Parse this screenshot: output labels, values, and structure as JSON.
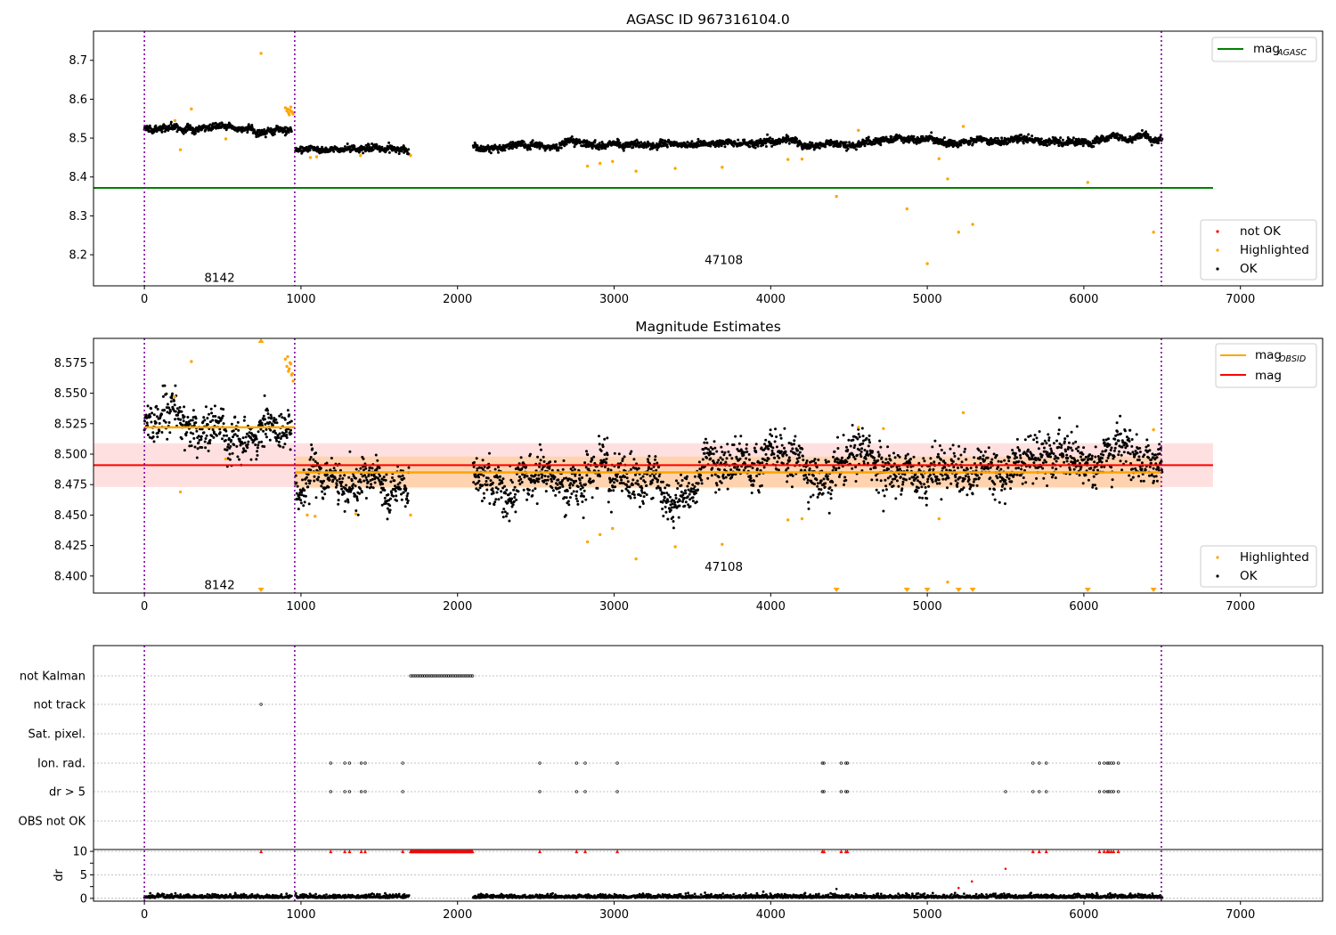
{
  "colors": {
    "ok": "#000000",
    "not_ok": "#ff0000",
    "highlighted": "#ffa500",
    "mag_agasc": "#008000",
    "mag_obsid": "#ffa500",
    "mag": "#ff0000",
    "vline": "#8000a0",
    "band": "#ff0000"
  },
  "chart_data": [
    {
      "type": "scatter",
      "title": "AGASC ID 967316104.0",
      "xlim": [
        -325,
        7525
      ],
      "ylim": [
        8.12,
        8.775
      ],
      "xticks": [
        0,
        1000,
        2000,
        3000,
        4000,
        5000,
        6000,
        7000
      ],
      "yticks": [
        8.2,
        8.3,
        8.4,
        8.5,
        8.6,
        8.7
      ],
      "vlines": [
        0,
        960,
        6495
      ],
      "hline": {
        "name": "mag_AGASC",
        "y": 8.372,
        "x_range": [
          -325,
          6825
        ]
      },
      "obsid_labels": [
        {
          "text": "8142",
          "x": 480,
          "y": 8.142
        },
        {
          "text": "47108",
          "x": 3700,
          "y": 8.188
        }
      ],
      "legend_top": [
        {
          "main": "mag",
          "sub": "AGASC",
          "color_key": "mag_agasc"
        }
      ],
      "legend_bottom": [
        {
          "label": "not OK",
          "color_key": "not_ok"
        },
        {
          "label": "Highlighted",
          "color_key": "highlighted"
        },
        {
          "label": "OK",
          "color_key": "ok"
        }
      ],
      "ok_segments": [
        {
          "x": [
            0,
            940
          ],
          "y": 8.524,
          "noise": 0.006,
          "slope": 0
        },
        {
          "x": [
            965,
            1690
          ],
          "y": 8.47,
          "noise": 0.006,
          "slope": 0
        },
        {
          "x": [
            2100,
            6500
          ],
          "y": 8.478,
          "noise": 0.006,
          "slope": 4.5e-06
        }
      ],
      "highlighted_points": [
        [
          745,
          8.718
        ],
        [
          300,
          8.575
        ],
        [
          195,
          8.545
        ],
        [
          230,
          8.47
        ],
        [
          520,
          8.498
        ],
        [
          1060,
          8.45
        ],
        [
          1100,
          8.452
        ],
        [
          1380,
          8.455
        ],
        [
          1700,
          8.455
        ],
        [
          2830,
          8.428
        ],
        [
          2910,
          8.435
        ],
        [
          2990,
          8.44
        ],
        [
          3140,
          8.415
        ],
        [
          3390,
          8.422
        ],
        [
          3690,
          8.425
        ],
        [
          4110,
          8.445
        ],
        [
          4200,
          8.446
        ],
        [
          4420,
          8.35
        ],
        [
          4560,
          8.52
        ],
        [
          4870,
          8.318
        ],
        [
          5000,
          8.177
        ],
        [
          5075,
          8.447
        ],
        [
          5130,
          8.395
        ],
        [
          5200,
          8.258
        ],
        [
          5290,
          8.278
        ],
        [
          6025,
          8.386
        ],
        [
          6445,
          8.258
        ],
        [
          5230,
          8.53
        ],
        [
          900,
          8.578
        ],
        [
          910,
          8.57
        ],
        [
          920,
          8.565
        ],
        [
          930,
          8.572
        ],
        [
          940,
          8.568
        ],
        [
          950,
          8.562
        ],
        [
          915,
          8.575
        ],
        [
          925,
          8.56
        ],
        [
          935,
          8.58
        ],
        [
          945,
          8.566
        ]
      ]
    },
    {
      "type": "scatter",
      "title": "Magnitude Estimates",
      "xlim": [
        -325,
        7525
      ],
      "ylim": [
        8.386,
        8.595
      ],
      "xticks": [
        0,
        1000,
        2000,
        3000,
        4000,
        5000,
        6000,
        7000
      ],
      "yticks": [
        8.4,
        8.425,
        8.45,
        8.475,
        8.5,
        8.525,
        8.55,
        8.575
      ],
      "vlines": [
        0,
        960,
        6495
      ],
      "mag": {
        "y": 8.491,
        "band": [
          8.473,
          8.509
        ],
        "x_range": [
          -325,
          6825
        ]
      },
      "mag_obsid": [
        {
          "x": [
            0,
            960
          ],
          "y": 8.522
        },
        {
          "x": [
            960,
            6495
          ],
          "y": 8.485,
          "band": [
            8.472,
            8.498
          ]
        }
      ],
      "obsid_labels": [
        {
          "text": "8142",
          "x": 480,
          "y": 8.393
        },
        {
          "text": "47108",
          "x": 3700,
          "y": 8.408
        }
      ],
      "legend_top": [
        {
          "main": "mag",
          "sub": "OBSID",
          "color_key": "mag_obsid"
        },
        {
          "main": "mag",
          "sub": "",
          "color_key": "mag"
        }
      ],
      "legend_bottom": [
        {
          "label": "Highlighted",
          "color_key": "highlighted"
        },
        {
          "label": "OK",
          "color_key": "ok"
        }
      ],
      "ok_segments": [
        {
          "x": [
            0,
            940
          ],
          "y": 8.521,
          "noise": 0.011,
          "slope": 0
        },
        {
          "x": [
            965,
            1690
          ],
          "y": 8.472,
          "noise": 0.011,
          "slope": 0
        },
        {
          "x": [
            2100,
            6500
          ],
          "y": 8.478,
          "noise": 0.012,
          "slope": 4.5e-06
        }
      ],
      "highlighted_points": [
        [
          300,
          8.576
        ],
        [
          195,
          8.547
        ],
        [
          230,
          8.469
        ],
        [
          520,
          8.496
        ],
        [
          1040,
          8.45
        ],
        [
          1090,
          8.449
        ],
        [
          1350,
          8.451
        ],
        [
          1700,
          8.45
        ],
        [
          2830,
          8.428
        ],
        [
          2910,
          8.434
        ],
        [
          2990,
          8.439
        ],
        [
          3140,
          8.414
        ],
        [
          3390,
          8.424
        ],
        [
          3690,
          8.426
        ],
        [
          4110,
          8.446
        ],
        [
          4200,
          8.447
        ],
        [
          4560,
          8.522
        ],
        [
          4720,
          8.521
        ],
        [
          5075,
          8.447
        ],
        [
          5130,
          8.395
        ],
        [
          5230,
          8.534
        ],
        [
          6445,
          8.52
        ],
        [
          900,
          8.578
        ],
        [
          910,
          8.572
        ],
        [
          920,
          8.568
        ],
        [
          930,
          8.575
        ],
        [
          940,
          8.565
        ],
        [
          950,
          8.56
        ],
        [
          915,
          8.58
        ],
        [
          925,
          8.57
        ],
        [
          935,
          8.574
        ],
        [
          945,
          8.566
        ]
      ],
      "clipped_markers": [
        745,
        4420,
        4870,
        5000,
        5200,
        5290,
        6025,
        6445
      ]
    },
    {
      "type": "scatter",
      "title": "",
      "xlim": [
        -325,
        7525
      ],
      "flag_rows": [
        "not Kalman",
        "not track",
        "Sat. pixel.",
        "Ion. rad.",
        "dr > 5",
        "OBS not OK"
      ],
      "flags": {
        "not Kalman": [
          [
            1700,
            2100
          ]
        ],
        "not track": [
          745
        ],
        "Sat. pixel.": [],
        "Ion. rad.": [
          1190,
          1280,
          1310,
          1385,
          1410,
          1650,
          2525,
          2760,
          2815,
          3020,
          4330,
          4340,
          4450,
          4480,
          4490,
          5675,
          5715,
          5760,
          6100,
          6130,
          6150,
          6160,
          6175,
          6190,
          6220
        ],
        "dr > 5": [
          1190,
          1280,
          1310,
          1385,
          1410,
          1650,
          2525,
          2760,
          2815,
          3020,
          4330,
          4340,
          4450,
          4480,
          4490,
          5500,
          5675,
          5715,
          5760,
          6100,
          6130,
          6150,
          6160,
          6175,
          6190,
          6220
        ],
        "OBS not OK": []
      },
      "dr": {
        "ylim": [
          -0.6,
          10.4
        ],
        "yticks": [
          0,
          5,
          10
        ],
        "ylabel": "dr",
        "ok_segments": [
          {
            "x": [
              0,
              940
            ]
          },
          {
            "x": [
              965,
              1690
            ]
          },
          {
            "x": [
              2100,
              6500
            ]
          }
        ],
        "not_ok_capped": [
          745,
          1190,
          1280,
          1310,
          1385,
          1410,
          1650,
          2525,
          2760,
          2815,
          3020,
          4330,
          4340,
          4450,
          4480,
          4490,
          5675,
          5715,
          5760,
          6100,
          6130,
          6150,
          6160,
          6175,
          6190,
          6220
        ],
        "not_ok_band": [
          1700,
          2100
        ],
        "not_ok_points": [
          [
            5500,
            6.3
          ],
          [
            5285,
            3.6
          ],
          [
            5200,
            2.2
          ]
        ]
      },
      "xticks": [
        0,
        1000,
        2000,
        3000,
        4000,
        5000,
        6000,
        7000
      ],
      "vlines": [
        0,
        960,
        6495
      ]
    }
  ]
}
